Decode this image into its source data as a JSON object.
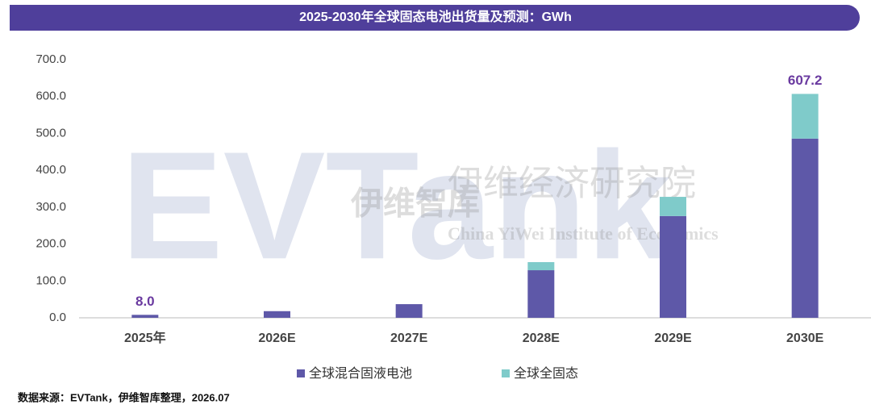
{
  "chart_data": {
    "type": "stacked_bar",
    "title": "2025-2030年全球固态电池出货量及预测：GWh",
    "categories": [
      "2025年",
      "2026E",
      "2027E",
      "2028E",
      "2029E",
      "2030E"
    ],
    "series": [
      {
        "name": "全球混合固液电池",
        "color": "#5e58a8",
        "values": [
          8,
          18,
          37,
          129,
          276,
          486
        ]
      },
      {
        "name": "全球全固态",
        "color": "#7fcbca",
        "values": [
          0,
          0,
          0,
          22,
          52,
          121.2
        ]
      }
    ],
    "totals": [
      8,
      null,
      null,
      null,
      null,
      607.2
    ],
    "total_labels": [
      "8.0",
      null,
      null,
      null,
      null,
      "607.2"
    ],
    "ylim": [
      0,
      700
    ],
    "yticks": [
      {
        "value": 0,
        "label": "0.0"
      },
      {
        "value": 100,
        "label": "100.0"
      },
      {
        "value": 200,
        "label": "200.0"
      },
      {
        "value": 300,
        "label": "300.0"
      },
      {
        "value": 400,
        "label": "400.0"
      },
      {
        "value": 500,
        "label": "500.0"
      },
      {
        "value": 600,
        "label": "600.0"
      },
      {
        "value": 700,
        "label": "700.0"
      }
    ],
    "legend": "bottom",
    "source": "数据来源：EVTank，伊维智库整理，2026.07",
    "watermark": {
      "logo": "EVTank",
      "cn_short": "伊维智库",
      "cn_full": "伊维经济研究院",
      "en": "China YiWei Institute of Economics"
    }
  }
}
